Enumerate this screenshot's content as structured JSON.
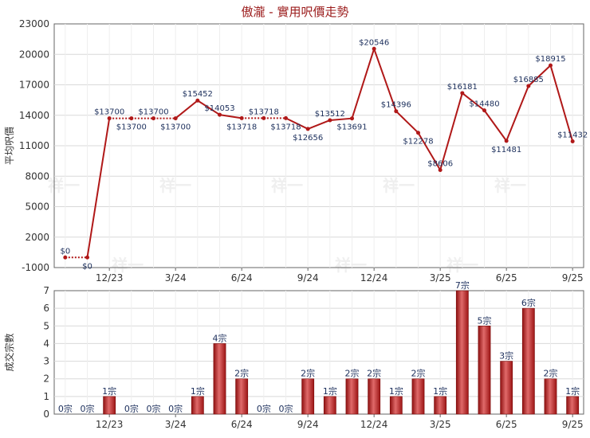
{
  "title": "傲瀧 - 實用呎價走勢",
  "watermark": "祥一",
  "colors": {
    "line": "#b01818",
    "bar": "#b81c1c",
    "bar_light": "#e06a6a",
    "grid": "#d9d9d9",
    "axis": "#666666"
  },
  "chart_data": [
    {
      "type": "line",
      "ylabel": "平均呎價",
      "yticks": [
        -1000,
        2000,
        5000,
        8000,
        11000,
        14000,
        17000,
        20000,
        23000
      ],
      "ylim": [
        -1000,
        23000
      ],
      "x_tick_labels": [
        "12/23",
        "3/24",
        "6/24",
        "9/24",
        "12/24",
        "3/25",
        "6/25",
        "9/25"
      ],
      "values": [
        0,
        0,
        13700,
        13700,
        13700,
        13700,
        15452,
        14053,
        13718,
        13718,
        13718,
        12656,
        13512,
        13691,
        20546,
        14396,
        12278,
        8606,
        16181,
        14480,
        11481,
        16885,
        18915,
        11432
      ],
      "labels": [
        "$0",
        "$0",
        "$13700",
        "$13700",
        "$13700",
        "$13700",
        "$15452",
        "$14053",
        "$13718",
        "$13718",
        "$13718",
        "$12656",
        "$13512",
        "$13691",
        "$20546",
        "$14396",
        "$12278",
        "$8606",
        "$16181",
        "$14480",
        "$11481",
        "$16885",
        "$18915",
        "$11432"
      ],
      "dotted_segments": [
        [
          0,
          1
        ],
        [
          2,
          5
        ],
        [
          8,
          10
        ]
      ],
      "grid": true
    },
    {
      "type": "bar",
      "ylabel": "成交宗數",
      "yticks": [
        0,
        1,
        2,
        3,
        4,
        5,
        6,
        7
      ],
      "ylim": [
        0,
        7
      ],
      "x_tick_labels": [
        "12/23",
        "3/24",
        "6/24",
        "9/24",
        "12/24",
        "3/25",
        "6/25",
        "9/25"
      ],
      "values": [
        0,
        0,
        1,
        0,
        0,
        0,
        1,
        4,
        2,
        0,
        0,
        2,
        1,
        2,
        2,
        1,
        2,
        1,
        7,
        5,
        3,
        6,
        2,
        1
      ],
      "labels": [
        "0宗",
        "0宗",
        "1宗",
        "0宗",
        "0宗",
        "0宗",
        "1宗",
        "4宗",
        "2宗",
        "0宗",
        "0宗",
        "2宗",
        "1宗",
        "2宗",
        "2宗",
        "1宗",
        "2宗",
        "1宗",
        "7宗",
        "5宗",
        "3宗",
        "6宗",
        "2宗",
        "1宗"
      ],
      "grid": true
    }
  ]
}
